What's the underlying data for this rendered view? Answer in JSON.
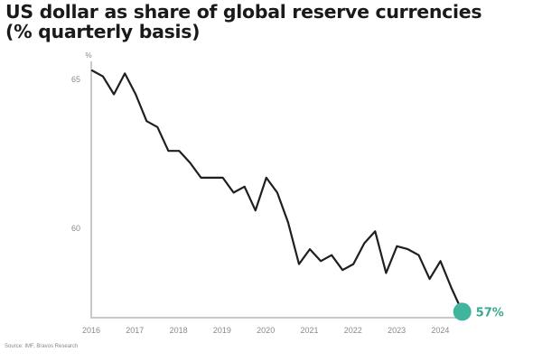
{
  "title_line1": "US dollar as share of global reserve currencies",
  "title_line2": "(% quarterly basis)",
  "source": "Source: IMF, Bravos Research",
  "y_unit": "%",
  "end_label": "57%",
  "colors": {
    "line": "#1f1f1f",
    "marker": "#3fb59e",
    "axis": "#c8c8c8",
    "end_label": "#3aa98f"
  },
  "chart_data": {
    "type": "line",
    "title": "US dollar as share of global reserve currencies (% quarterly basis)",
    "xlabel": "",
    "ylabel": "%",
    "x_tick_labels": [
      "2016",
      "2017",
      "2018",
      "2019",
      "2020",
      "2021",
      "2022",
      "2023",
      "2024"
    ],
    "y_tick_labels": [
      "60",
      "65"
    ],
    "ylim": [
      57,
      65.3
    ],
    "grid": false,
    "legend": "none",
    "annotations": [
      {
        "text": "57%",
        "at": "last point",
        "marker": "teal circle"
      }
    ],
    "x": [
      "2016Q1",
      "2016Q2",
      "2016Q3",
      "2016Q4",
      "2017Q1",
      "2017Q2",
      "2017Q3",
      "2017Q4",
      "2018Q1",
      "2018Q2",
      "2018Q3",
      "2018Q4",
      "2019Q1",
      "2019Q2",
      "2019Q3",
      "2019Q4",
      "2020Q1",
      "2020Q2",
      "2020Q3",
      "2020Q4",
      "2021Q1",
      "2021Q2",
      "2021Q3",
      "2021Q4",
      "2022Q1",
      "2022Q2",
      "2022Q3",
      "2022Q4",
      "2023Q1",
      "2023Q2",
      "2023Q3",
      "2023Q4",
      "2024Q1",
      "2024Q2",
      "2024Q3"
    ],
    "series": [
      {
        "name": "USD share of global reserves (%)",
        "values": [
          65.3,
          65.1,
          64.5,
          65.2,
          64.5,
          63.6,
          63.4,
          62.6,
          62.6,
          62.2,
          61.7,
          61.7,
          61.7,
          61.2,
          61.4,
          60.6,
          61.7,
          61.2,
          60.2,
          58.8,
          59.3,
          58.9,
          59.1,
          58.6,
          58.8,
          59.5,
          59.9,
          58.5,
          59.4,
          59.3,
          59.1,
          58.3,
          58.9,
          58.0,
          57.2
        ]
      }
    ]
  }
}
